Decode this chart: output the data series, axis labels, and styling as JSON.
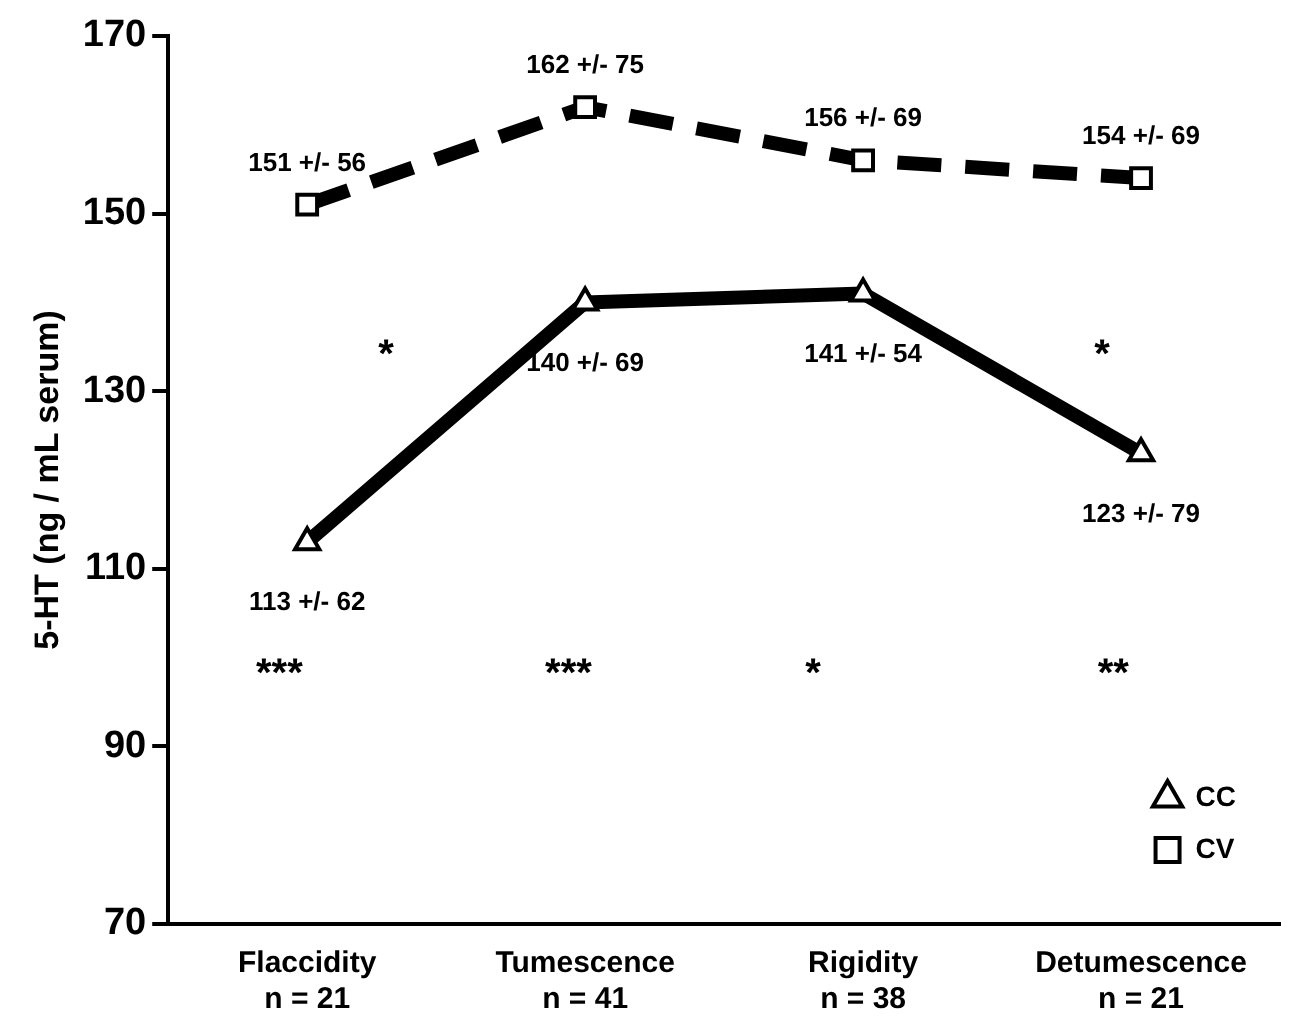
{
  "chart_data": {
    "type": "line",
    "ylabel": "5-HT (ng / mL serum)",
    "categories": [
      "Flaccidity\nn = 21",
      "Tumescence\nn = 41",
      "Rigidity\nn = 38",
      "Detumescence\nn = 21"
    ],
    "series": [
      {
        "name": "CC",
        "color": "#000000",
        "marker": "triangle",
        "line_style": "solid",
        "values": [
          113,
          140,
          141,
          123
        ],
        "value_labels": [
          "113 +/- 62",
          "140 +/- 69",
          "141 +/- 54",
          "123 +/- 79"
        ]
      },
      {
        "name": "CV",
        "color": "#000000",
        "marker": "square",
        "line_style": "dashed",
        "values": [
          151,
          162,
          156,
          154
        ],
        "value_labels": [
          "151 +/- 56",
          "162 +/- 75",
          "156 +/- 69",
          "154 +/- 69"
        ]
      }
    ],
    "ylim": [
      70,
      170
    ],
    "yticks": [
      70,
      90,
      110,
      130,
      150,
      170
    ],
    "grid": false,
    "legend": "bottom right",
    "annotations": [
      "***",
      "***",
      "*",
      "**",
      "*",
      "*"
    ]
  }
}
